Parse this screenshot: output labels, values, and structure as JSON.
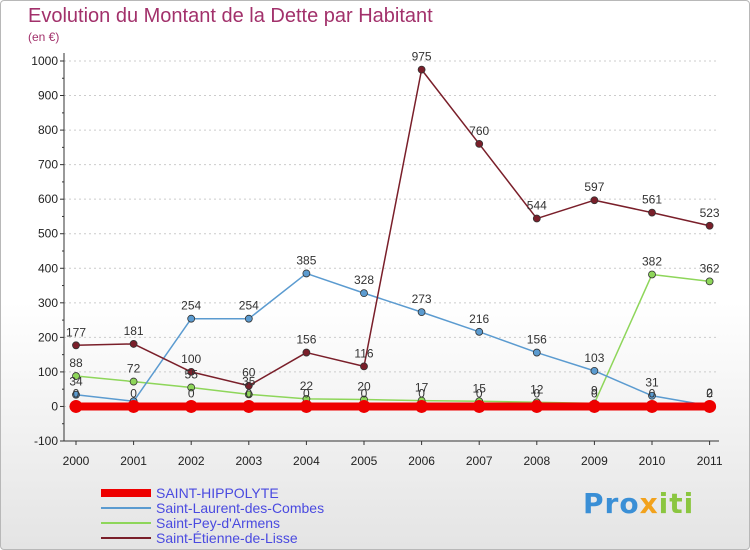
{
  "header": {
    "title": "Evolution du Montant de la Dette par Habitant",
    "unit": "(en €)"
  },
  "brand": {
    "part1": "Pro",
    "part2": "x",
    "part3": "iti"
  },
  "colors": {
    "SAINT-HIPPOLYTE": "#ee0000",
    "Saint-Laurent-des-Combes": "#5b9bd0",
    "Saint-Pey-d'Armens": "#8ed65a",
    "Saint-Étienne-de-Lisse": "#7a1f2a",
    "gridline": "#cccccc",
    "title": "#a2316b"
  },
  "chart_data": {
    "type": "line",
    "title": "Evolution du Montant de la Dette par Habitant",
    "ylabel": "(en €)",
    "xlabel": "",
    "x": [
      "2000",
      "2001",
      "2002",
      "2003",
      "2004",
      "2005",
      "2006",
      "2007",
      "2008",
      "2009",
      "2010",
      "2011"
    ],
    "ylim": [
      -100,
      1000
    ],
    "yticks": [
      -100,
      0,
      100,
      200,
      300,
      400,
      500,
      600,
      700,
      800,
      900,
      1000
    ],
    "grid": "horizontal",
    "legend": "bottom-left",
    "series": [
      {
        "name": "SAINT-HIPPOLYTE",
        "values": [
          0,
          0,
          0,
          0,
          0,
          0,
          0,
          0,
          0,
          0,
          0,
          0
        ],
        "labels": [
          "0",
          "0",
          "0",
          "0",
          "0",
          "0",
          "0",
          "0",
          "0",
          "0",
          "0",
          "0"
        ]
      },
      {
        "name": "Saint-Laurent-des-Combes",
        "values": [
          34,
          15,
          254,
          254,
          385,
          328,
          273,
          216,
          156,
          103,
          31,
          2
        ],
        "labels": [
          "34",
          "",
          "254",
          "254",
          "385",
          "328",
          "273",
          "216",
          "156",
          "103",
          "31",
          "2"
        ]
      },
      {
        "name": "Saint-Pey-d'Armens",
        "values": [
          88,
          72,
          55,
          35,
          22,
          20,
          17,
          15,
          12,
          9,
          382,
          362
        ],
        "labels": [
          "88",
          "72",
          "55",
          "35",
          "22",
          "20",
          "17",
          "15",
          "12",
          "9",
          "382",
          "362"
        ]
      },
      {
        "name": "Saint-Étienne-de-Lisse",
        "values": [
          177,
          181,
          100,
          60,
          156,
          116,
          975,
          760,
          544,
          597,
          561,
          523
        ],
        "labels": [
          "177",
          "181",
          "100",
          "60",
          "156",
          "116",
          "975",
          "760",
          "544",
          "597",
          "561",
          "523"
        ]
      }
    ]
  }
}
